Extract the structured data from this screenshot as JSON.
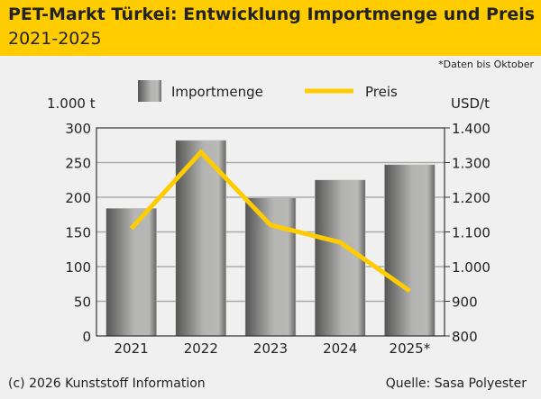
{
  "header": {
    "title": "PET-Markt Türkei: Entwicklung Importmenge und Preis",
    "subtitle": "2021-2025"
  },
  "note": "*Daten bis Oktober",
  "footer": {
    "copyright": "(c) 2026 Kunststoff Information",
    "source": "Quelle: Sasa Polyester"
  },
  "chart_data": {
    "type": "bar+line",
    "categories": [
      "2021",
      "2022",
      "2023",
      "2024",
      "2025*"
    ],
    "series": [
      {
        "name": "Importmenge",
        "type": "bar",
        "axis": "left",
        "values": [
          184,
          282,
          199,
          225,
          247
        ],
        "color": "#8a8a8a"
      },
      {
        "name": "Preis",
        "type": "line",
        "axis": "right",
        "values": [
          1110,
          1330,
          1120,
          1070,
          930
        ],
        "color": "#ffcc00"
      }
    ],
    "ylabel_left": "1.000 t",
    "ylabel_right": "USD/t",
    "ylim_left": [
      0,
      300
    ],
    "ylim_right": [
      800,
      1400
    ],
    "yticks_left": [
      "0",
      "50",
      "100",
      "150",
      "200",
      "250",
      "300"
    ],
    "yticks_right": [
      "800",
      "900",
      "1.000",
      "1.100",
      "1.200",
      "1.300",
      "1.400"
    ],
    "grid": true,
    "legend": "top"
  }
}
